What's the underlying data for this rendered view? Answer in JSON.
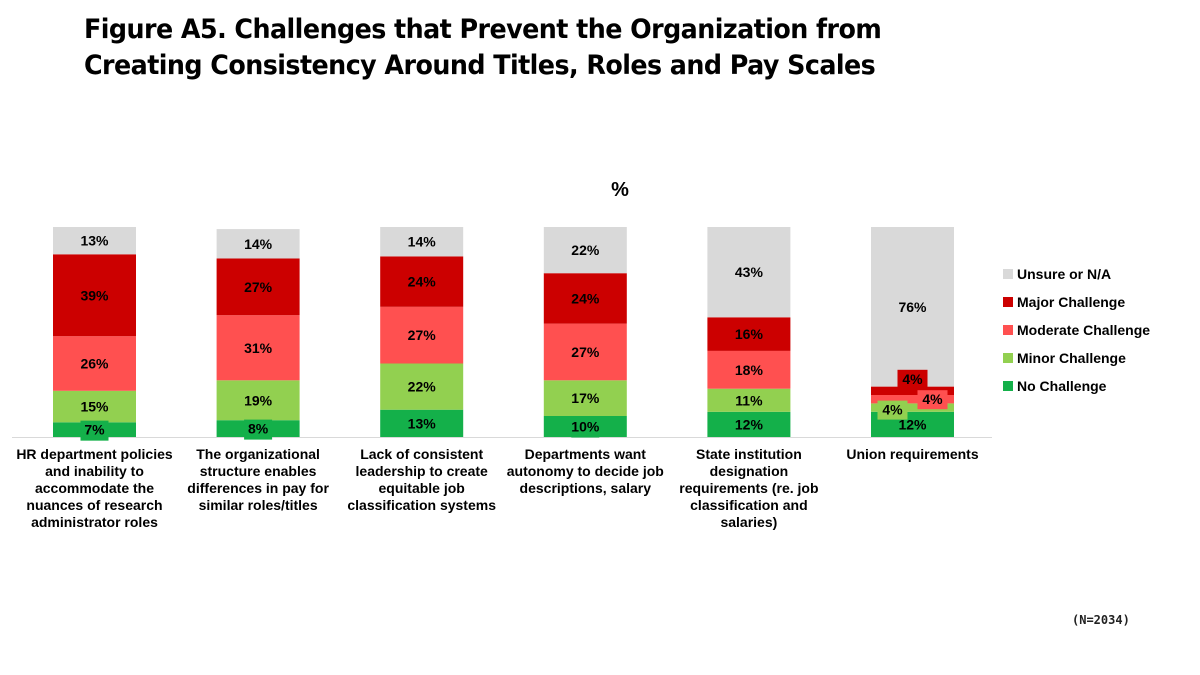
{
  "chart_data": {
    "type": "bar",
    "stacked": true,
    "title": "Figure A5. Challenges that Prevent the Organization from Creating Consistency Around Titles, Roles and Pay Scales",
    "title_lines": [
      "Figure A5. Challenges that Prevent the Organization from",
      "Creating Consistency Around Titles, Roles and Pay Scales"
    ],
    "unit_label": "%",
    "xlabel": "",
    "ylabel": "",
    "ylim": [
      0,
      100
    ],
    "grid": false,
    "legend_position": "right",
    "categories": [
      "HR department policies and inability to accommodate the nuances of research administrator roles",
      "The organizational structure enables differences in pay for similar roles/titles",
      "Lack of consistent leadership to create equitable job classification systems",
      "Departments want autonomy to decide job descriptions, salary",
      "State institution designation requirements (re. job classification and salaries)",
      "Union requirements"
    ],
    "series": [
      {
        "name": "No Challenge",
        "color": "#14b04a",
        "values": [
          7,
          8,
          13,
          10,
          12,
          12
        ]
      },
      {
        "name": "Minor Challenge",
        "color": "#92d050",
        "values": [
          15,
          19,
          22,
          17,
          11,
          4
        ]
      },
      {
        "name": "Moderate Challenge",
        "color": "#ff5050",
        "values": [
          26,
          31,
          27,
          27,
          18,
          4
        ]
      },
      {
        "name": "Major Challenge",
        "color": "#cc0000",
        "values": [
          39,
          27,
          24,
          24,
          16,
          4
        ]
      },
      {
        "name": "Unsure or N/A",
        "color": "#d9d9d9",
        "values": [
          13,
          14,
          14,
          22,
          43,
          76
        ]
      }
    ],
    "legend_order": [
      "Unsure or N/A",
      "Major Challenge",
      "Moderate Challenge",
      "Minor Challenge",
      "No Challenge"
    ],
    "value_suffix": "%"
  },
  "footnote": "(N=2034)"
}
